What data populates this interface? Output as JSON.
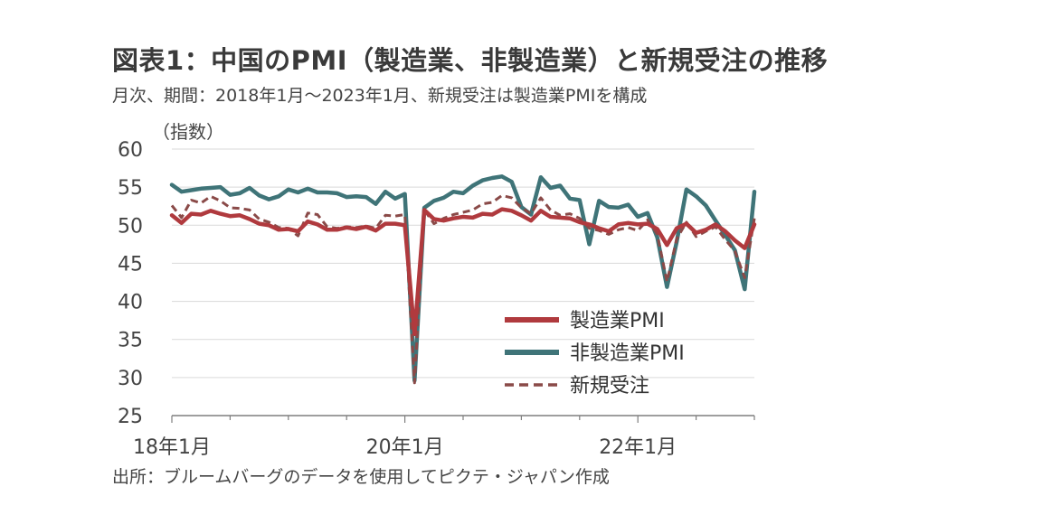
{
  "header": {
    "title": "図表1：中国のPMI（製造業、非製造業）と新規受注の推移",
    "subtitle": "月次、期間：2018年1月～2023年1月、新規受注は製造業PMIを構成",
    "unit": "（指数）"
  },
  "footer": {
    "source": "出所：ブルームバーグのデータを使用してピクテ・ジャパン作成"
  },
  "colors": {
    "manufacturing": "#b03a3e",
    "non_manufacturing": "#3f7478",
    "new_orders": "#8a4a48",
    "grid": "#d9d9d9",
    "axis": "#7f7f7f"
  },
  "chart_data": {
    "type": "line",
    "x_start": "2018-01",
    "x_end": "2023-01",
    "ylim": [
      25,
      60
    ],
    "yticks": [
      25,
      30,
      35,
      40,
      45,
      50,
      55,
      60
    ],
    "xticks": [
      {
        "label": "18年1月",
        "index": 0
      },
      {
        "label": "20年1月",
        "index": 24
      },
      {
        "label": "22年1月",
        "index": 48
      }
    ],
    "grid": "horizontal",
    "legend_position": "lower-right",
    "series": [
      {
        "name": "製造業PMI",
        "style": "solid",
        "values": [
          51.3,
          50.3,
          51.5,
          51.4,
          51.9,
          51.5,
          51.2,
          51.3,
          50.8,
          50.2,
          50.0,
          49.4,
          49.5,
          49.2,
          50.5,
          50.1,
          49.4,
          49.4,
          49.7,
          49.5,
          49.8,
          49.3,
          50.2,
          50.2,
          50.0,
          35.7,
          52.0,
          50.8,
          50.6,
          50.9,
          51.1,
          51.0,
          51.5,
          51.4,
          52.1,
          51.9,
          51.3,
          50.6,
          51.9,
          51.1,
          51.0,
          50.9,
          50.4,
          50.1,
          49.6,
          49.2,
          50.1,
          50.3,
          50.1,
          50.2,
          49.5,
          47.4,
          49.6,
          50.2,
          49.0,
          49.4,
          50.1,
          49.2,
          48.0,
          47.0,
          50.1
        ]
      },
      {
        "name": "非製造業PMI",
        "style": "solid",
        "values": [
          55.3,
          54.4,
          54.6,
          54.8,
          54.9,
          55.0,
          54.0,
          54.2,
          54.9,
          53.9,
          53.4,
          53.8,
          54.7,
          54.3,
          54.8,
          54.3,
          54.3,
          54.2,
          53.7,
          53.8,
          53.7,
          52.8,
          54.4,
          53.5,
          54.1,
          29.6,
          52.3,
          53.2,
          53.6,
          54.4,
          54.2,
          55.2,
          55.9,
          56.2,
          56.4,
          55.7,
          52.4,
          51.4,
          56.3,
          54.9,
          55.2,
          53.5,
          53.3,
          47.5,
          53.2,
          52.4,
          52.3,
          52.7,
          51.1,
          51.6,
          48.4,
          41.9,
          47.8,
          54.7,
          53.8,
          52.6,
          50.6,
          48.7,
          46.7,
          41.6,
          54.4
        ]
      },
      {
        "name": "新規受注",
        "style": "dashed",
        "values": [
          52.6,
          51.0,
          53.3,
          52.9,
          53.8,
          53.2,
          52.3,
          52.2,
          52.0,
          50.8,
          50.4,
          49.7,
          49.6,
          48.6,
          51.6,
          51.4,
          49.8,
          49.6,
          49.8,
          49.7,
          49.9,
          49.6,
          51.3,
          51.2,
          51.4,
          29.3,
          52.0,
          50.2,
          50.9,
          51.4,
          51.7,
          52.0,
          52.8,
          53.0,
          53.9,
          53.6,
          52.3,
          51.5,
          53.6,
          52.0,
          51.3,
          51.5,
          50.9,
          49.6,
          49.3,
          48.8,
          49.4,
          49.7,
          49.3,
          50.7,
          48.8,
          42.6,
          48.2,
          50.4,
          48.5,
          49.2,
          49.8,
          48.1,
          46.6,
          43.1,
          50.9
        ]
      }
    ]
  }
}
